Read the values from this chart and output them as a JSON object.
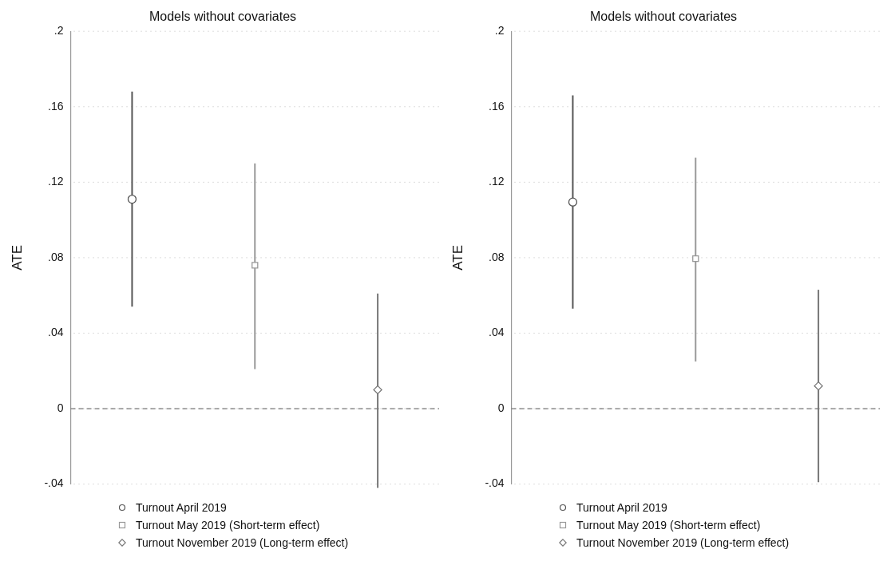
{
  "chart_data": [
    {
      "type": "scatter",
      "title": "Models without covariates",
      "ylabel": "ATE",
      "categories": [
        null,
        null,
        null
      ],
      "ylim": [
        -0.04,
        0.2
      ],
      "yticks": [
        {
          "value": -0.04,
          "label": "-.04"
        },
        {
          "value": 0,
          "label": "0"
        },
        {
          "value": 0.04,
          "label": ".04"
        },
        {
          "value": 0.08,
          "label": ".08"
        },
        {
          "value": 0.12,
          "label": ".12"
        },
        {
          "value": 0.16,
          "label": ".16"
        },
        {
          "value": 0.2,
          "label": ".2"
        }
      ],
      "grid": "y",
      "legend": "bottom left",
      "tick_labels": "y",
      "ref_lines": [
        {
          "axis": "y",
          "value": 0,
          "line_style": "dashed",
          "color": "#777777"
        }
      ],
      "series": [
        {
          "name": "Turnout April 2019",
          "color": "#555555",
          "marker": "circle",
          "values": [
            0.111,
            null,
            null
          ],
          "errors": [
            [
              0.054,
              0.168
            ],
            null,
            null
          ]
        },
        {
          "name": "Turnout May 2019 (Short-term effect)",
          "color": "#999999",
          "marker": "square",
          "values": [
            null,
            0.076,
            null
          ],
          "errors": [
            null,
            [
              0.021,
              0.13
            ],
            null
          ]
        },
        {
          "name": "Turnout November 2019 (Long-term effect)",
          "color": "#777777",
          "marker": "diamond",
          "values": [
            null,
            null,
            0.01
          ],
          "errors": [
            null,
            null,
            [
              -0.042,
              0.061
            ]
          ]
        }
      ]
    },
    {
      "type": "scatter",
      "title": "Models without covariates",
      "ylabel": "ATE",
      "categories": [
        null,
        null,
        null
      ],
      "ylim": [
        -0.04,
        0.2
      ],
      "yticks": [
        {
          "value": -0.04,
          "label": "-.04"
        },
        {
          "value": 0,
          "label": "0"
        },
        {
          "value": 0.04,
          "label": ".04"
        },
        {
          "value": 0.08,
          "label": ".08"
        },
        {
          "value": 0.12,
          "label": ".12"
        },
        {
          "value": 0.16,
          "label": ".16"
        },
        {
          "value": 0.2,
          "label": ".2"
        }
      ],
      "grid": "y",
      "legend": "bottom left",
      "tick_labels": "y",
      "ref_lines": [
        {
          "axis": "y",
          "value": 0,
          "line_style": "dashed",
          "color": "#777777"
        }
      ],
      "series": [
        {
          "name": "Turnout April 2019",
          "color": "#555555",
          "marker": "circle",
          "values": [
            0.1095,
            null,
            null
          ],
          "errors": [
            [
              0.053,
              0.166
            ],
            null,
            null
          ]
        },
        {
          "name": "Turnout May 2019 (Short-term effect)",
          "color": "#999999",
          "marker": "square",
          "values": [
            null,
            0.0795,
            null
          ],
          "errors": [
            null,
            [
              0.025,
              0.133
            ],
            null
          ]
        },
        {
          "name": "Turnout November 2019 (Long-term effect)",
          "color": "#777777",
          "marker": "diamond",
          "values": [
            null,
            null,
            0.012
          ],
          "errors": [
            null,
            null,
            [
              -0.039,
              0.063
            ]
          ]
        }
      ]
    }
  ]
}
